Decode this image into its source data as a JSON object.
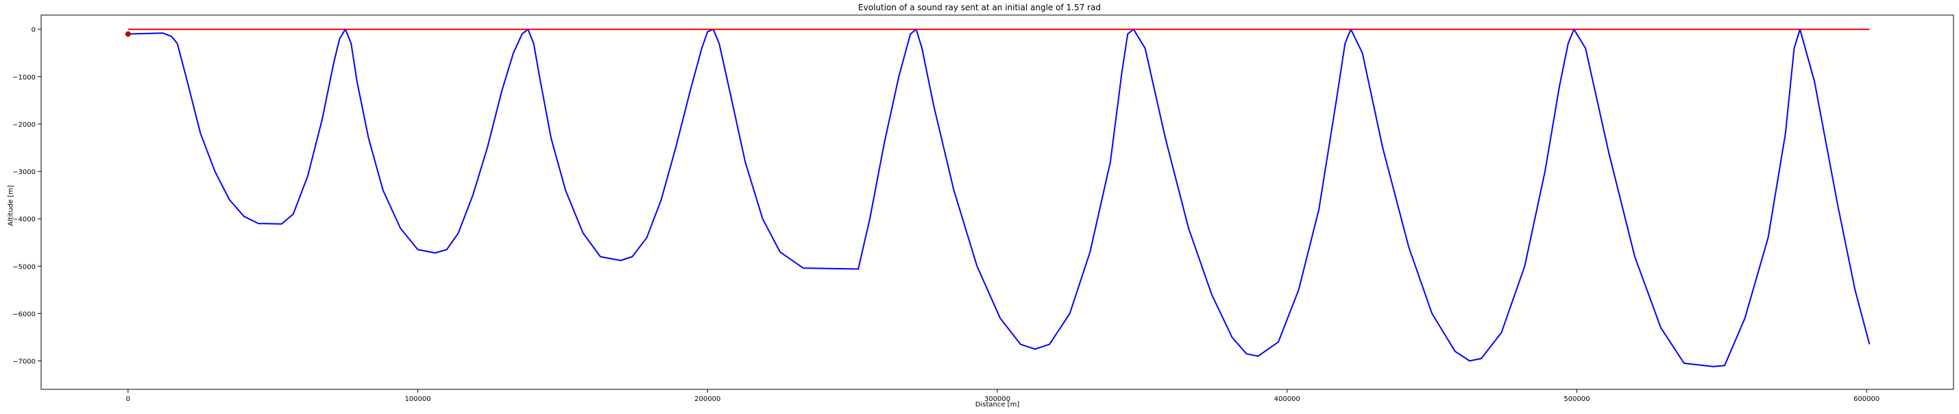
{
  "chart_data": {
    "type": "line",
    "title": "Evolution of a sound ray sent at an initial angle of 1.57 rad",
    "xlabel": "Distance [m]",
    "ylabel": "Altitude [m]",
    "xlim": [
      -30000,
      630000
    ],
    "ylim": [
      -7600,
      300
    ],
    "grid": false,
    "x_ticks": [
      0,
      100000,
      200000,
      300000,
      400000,
      500000,
      600000
    ],
    "y_ticks": [
      0,
      -1000,
      -2000,
      -3000,
      -4000,
      -5000,
      -6000,
      -7000
    ],
    "series": [
      {
        "color": "#0000ff",
        "x": [
          0,
          12000,
          15000,
          17000,
          20000,
          25000,
          30000,
          35000,
          40000,
          45000,
          53000,
          57000,
          62000,
          67000,
          71000,
          73000,
          75000,
          77000,
          79000,
          83000,
          88000,
          94000,
          100000,
          106000,
          110000,
          114000,
          119000,
          124000,
          129000,
          133000,
          136000,
          138000,
          140000,
          142000,
          146000,
          151000,
          157000,
          163000,
          170000,
          174000,
          179000,
          184000,
          189000,
          194000,
          198000,
          200000,
          202000,
          204000,
          208000,
          213000,
          219000,
          225000,
          233000,
          252000,
          256000,
          261000,
          266000,
          270000,
          272000,
          274000,
          278000,
          285000,
          293000,
          301000,
          308000,
          313000,
          318000,
          325000,
          332000,
          339000,
          343000,
          345000,
          347000,
          351000,
          358000,
          366000,
          374000,
          381000,
          386000,
          390000,
          397000,
          404000,
          411000,
          417000,
          420000,
          422000,
          426000,
          433000,
          442000,
          450000,
          458000,
          463000,
          467000,
          474000,
          482000,
          489000,
          494000,
          497000,
          499000,
          503000,
          511000,
          520000,
          529000,
          537000,
          547000,
          551000,
          558000,
          566000,
          572000,
          575000,
          577000,
          582000,
          590000,
          596000,
          601000
        ],
        "y": [
          -100,
          -80,
          -150,
          -300,
          -1000,
          -2200,
          -3000,
          -3600,
          -3950,
          -4100,
          -4110,
          -3900,
          -3100,
          -1900,
          -700,
          -200,
          0,
          -300,
          -1100,
          -2300,
          -3400,
          -4200,
          -4650,
          -4720,
          -4650,
          -4300,
          -3500,
          -2500,
          -1300,
          -500,
          -100,
          0,
          -300,
          -1000,
          -2300,
          -3400,
          -4300,
          -4800,
          -4880,
          -4800,
          -4400,
          -3600,
          -2500,
          -1300,
          -400,
          -50,
          0,
          -300,
          -1400,
          -2800,
          -4000,
          -4700,
          -5040,
          -5060,
          -4000,
          -2400,
          -1000,
          -100,
          0,
          -400,
          -1600,
          -3400,
          -5000,
          -6100,
          -6650,
          -6750,
          -6650,
          -6000,
          -4700,
          -2800,
          -900,
          -100,
          0,
          -400,
          -2300,
          -4200,
          -5600,
          -6500,
          -6850,
          -6900,
          -6600,
          -5500,
          -3800,
          -1500,
          -300,
          0,
          -500,
          -2500,
          -4600,
          -6000,
          -6800,
          -7000,
          -6950,
          -6400,
          -5000,
          -3000,
          -1200,
          -300,
          0,
          -400,
          -2600,
          -4800,
          -6300,
          -7050,
          -7120,
          -7100,
          -6100,
          -4400,
          -2200,
          -400,
          0,
          -1100,
          -3700,
          -5500,
          -6650
        ]
      },
      {
        "color": "#ff0000",
        "x": [
          0,
          601000
        ],
        "y": [
          0,
          0
        ]
      }
    ],
    "markers": [
      {
        "x": 0,
        "y": -100,
        "color": "#c00000"
      }
    ]
  }
}
